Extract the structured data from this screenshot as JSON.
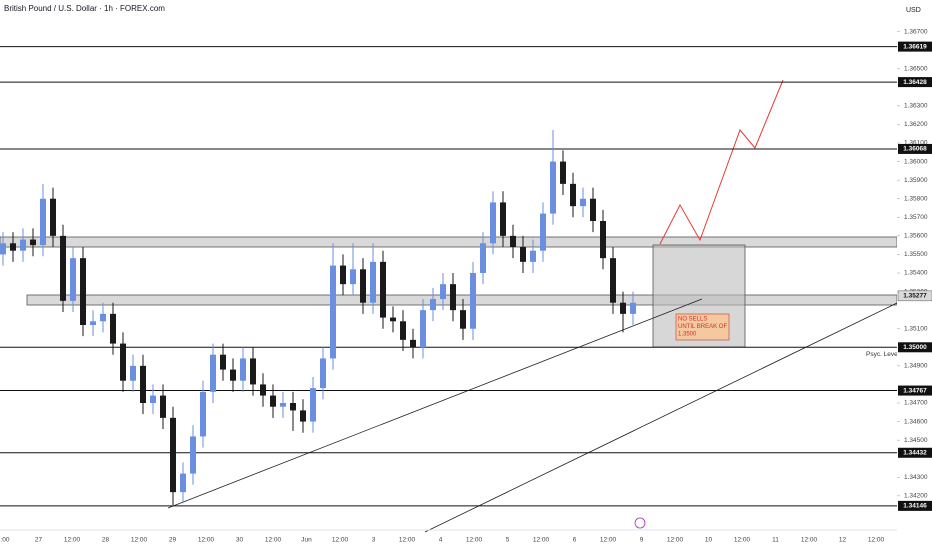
{
  "chart_data": {
    "type": "candlestick",
    "title": "British Pound / U.S. Dollar · 1h · FOREX.com",
    "currency": "USD",
    "up_color": "#6a8fe0",
    "down_color": "#1a1a1a",
    "ylim": [
      1.3407,
      1.3687
    ],
    "yticks": [
      {
        "value": 1.367,
        "label": "1.36700"
      },
      {
        "value": 1.365,
        "label": "1.36500"
      },
      {
        "value": 1.363,
        "label": "1.36300"
      },
      {
        "value": 1.362,
        "label": "1.36200"
      },
      {
        "value": 1.361,
        "label": "1.36100"
      },
      {
        "value": 1.36,
        "label": "1.36000"
      },
      {
        "value": 1.359,
        "label": "1.35900"
      },
      {
        "value": 1.358,
        "label": "1.35800"
      },
      {
        "value": 1.357,
        "label": "1.35700"
      },
      {
        "value": 1.356,
        "label": "1.35600"
      },
      {
        "value": 1.355,
        "label": "1.35500"
      },
      {
        "value": 1.354,
        "label": "1.35400"
      },
      {
        "value": 1.353,
        "label": "1.35300"
      },
      {
        "value": 1.351,
        "label": "1.35100"
      },
      {
        "value": 1.349,
        "label": "1.34900"
      },
      {
        "value": 1.347,
        "label": "1.34700"
      },
      {
        "value": 1.346,
        "label": "1.34600"
      },
      {
        "value": 1.345,
        "label": "1.34500"
      },
      {
        "value": 1.343,
        "label": "1.34300"
      },
      {
        "value": 1.342,
        "label": "1.34200"
      }
    ],
    "x_labels": [
      ":00",
      "27",
      "12:00",
      "28",
      "12:00",
      "29",
      "12:00",
      "30",
      "12:00",
      "Jun",
      "12:00",
      "3",
      "12:00",
      "4",
      "12:00",
      "5",
      "12:00",
      "6",
      "12:00",
      "9",
      "12:00",
      "10",
      "12:00",
      "11",
      "12:00",
      "12",
      "12:00"
    ],
    "levels": [
      1.36619,
      1.36428,
      1.36068,
      {
        "value": 1.35,
        "label": "1.35000"
      },
      1.34767,
      1.34432,
      1.34146
    ],
    "zone_label": 1.35277,
    "level_note": "Psyc. Level",
    "annotation": [
      "NO SELLS",
      "UNTIL BREAK OF",
      "1.3500"
    ],
    "open": [
      1.355,
      1.3556,
      1.3552,
      1.3558,
      1.3555,
      1.358,
      1.356,
      1.3525,
      1.3548,
      1.3512,
      1.3514,
      1.3518,
      1.3502,
      1.3482,
      1.349,
      1.347,
      1.3474,
      1.3462,
      1.3422,
      1.3432,
      1.3452,
      1.3476,
      1.3496,
      1.3488,
      1.3482,
      1.3494,
      1.348,
      1.3474,
      1.3468,
      1.347,
      1.3466,
      1.346,
      1.3478,
      1.3494,
      1.3544,
      1.3534,
      1.3542,
      1.3524,
      1.3546,
      1.3516,
      1.3514,
      1.3504,
      1.35,
      1.352,
      1.3526,
      1.3534,
      1.352,
      1.351,
      1.354,
      1.3556,
      1.3578,
      1.356,
      1.3554,
      1.3546,
      1.3552,
      1.3572,
      1.36,
      1.3588,
      1.3576,
      1.358,
      1.3568,
      1.3548,
      1.3524,
      1.3518
    ],
    "high": [
      1.3562,
      1.3562,
      1.3564,
      1.3564,
      1.3588,
      1.3586,
      1.3566,
      1.3554,
      1.3554,
      1.352,
      1.3524,
      1.3524,
      1.3508,
      1.3496,
      1.3496,
      1.348,
      1.348,
      1.3468,
      1.3438,
      1.3458,
      1.3482,
      1.3502,
      1.3502,
      1.3494,
      1.35,
      1.35,
      1.3486,
      1.348,
      1.3476,
      1.3476,
      1.3472,
      1.3484,
      1.35,
      1.3556,
      1.355,
      1.3556,
      1.3548,
      1.3556,
      1.3552,
      1.3522,
      1.352,
      1.351,
      1.3526,
      1.3532,
      1.354,
      1.354,
      1.3526,
      1.3546,
      1.3562,
      1.3584,
      1.3584,
      1.3566,
      1.356,
      1.3558,
      1.3578,
      1.3617,
      1.3606,
      1.3594,
      1.3586,
      1.3586,
      1.3574,
      1.3554,
      1.353,
      1.353
    ],
    "low": [
      1.3544,
      1.3546,
      1.3546,
      1.3549,
      1.3549,
      1.3554,
      1.3519,
      1.3519,
      1.3506,
      1.3506,
      1.3508,
      1.3496,
      1.3476,
      1.3476,
      1.3464,
      1.3464,
      1.3456,
      1.3415,
      1.3416,
      1.3426,
      1.3446,
      1.347,
      1.3482,
      1.3476,
      1.3476,
      1.3474,
      1.3468,
      1.3462,
      1.3462,
      1.3455,
      1.3454,
      1.3454,
      1.3472,
      1.3488,
      1.3528,
      1.3528,
      1.3518,
      1.3518,
      1.351,
      1.3508,
      1.3498,
      1.3494,
      1.3494,
      1.3514,
      1.352,
      1.3514,
      1.3504,
      1.3504,
      1.3534,
      1.355,
      1.3554,
      1.3548,
      1.354,
      1.354,
      1.3546,
      1.3566,
      1.3582,
      1.357,
      1.357,
      1.3562,
      1.3542,
      1.3518,
      1.3508,
      1.3512
    ],
    "close": [
      1.3556,
      1.3552,
      1.3558,
      1.3555,
      1.358,
      1.356,
      1.3525,
      1.3548,
      1.3512,
      1.3514,
      1.3518,
      1.3502,
      1.3482,
      1.349,
      1.347,
      1.3474,
      1.3462,
      1.3422,
      1.3432,
      1.3452,
      1.3476,
      1.3496,
      1.3488,
      1.3482,
      1.3494,
      1.348,
      1.3474,
      1.3468,
      1.347,
      1.3466,
      1.346,
      1.3478,
      1.3494,
      1.3544,
      1.3534,
      1.3542,
      1.3524,
      1.3546,
      1.3516,
      1.3514,
      1.3504,
      1.35,
      1.352,
      1.3526,
      1.3534,
      1.352,
      1.351,
      1.354,
      1.3556,
      1.3578,
      1.356,
      1.3554,
      1.3546,
      1.3552,
      1.3572,
      1.36,
      1.3588,
      1.3576,
      1.358,
      1.3568,
      1.3548,
      1.3524,
      1.3518,
      1.3524
    ]
  }
}
